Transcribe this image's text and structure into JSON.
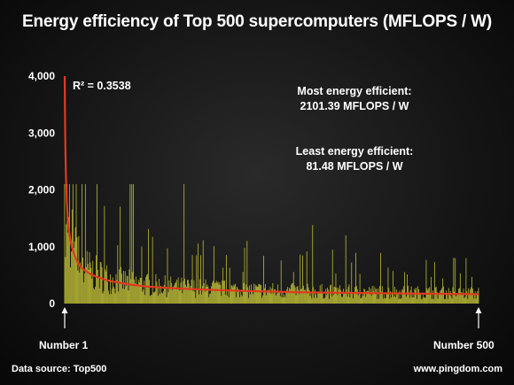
{
  "title": "Energy efficiency of Top 500 supercomputers (MFLOPS / W)",
  "footer": {
    "source": "Data source: Top500",
    "site": "www.pingdom.com"
  },
  "colors": {
    "bars": "#c9c93a",
    "trendline": "#e03a1e",
    "text": "#ffffff"
  },
  "chart_data": {
    "type": "bar",
    "title": "Energy efficiency of Top 500 supercomputers (MFLOPS / W)",
    "xlabel": "",
    "ylabel": "",
    "ylim": [
      0,
      4000
    ],
    "yticks": [
      0,
      1000,
      2000,
      3000,
      4000
    ],
    "ytick_labels": [
      "0",
      "1,000",
      "2,000",
      "3,000",
      "4,000"
    ],
    "x_range": [
      1,
      500
    ],
    "x_markers": [
      {
        "rank": 1,
        "label": "Number 1"
      },
      {
        "rank": 500,
        "label": "Number 500"
      }
    ],
    "grid": false,
    "legend": "none",
    "series": [
      {
        "type": "bar",
        "n": 500,
        "min": 81.48,
        "max": 2101.39,
        "sample_peaks": [
          {
            "rank": 2,
            "value": 820
          },
          {
            "rank": 4,
            "value": 2100
          },
          {
            "rank": 7,
            "value": 2100
          },
          {
            "rank": 11,
            "value": 2100
          },
          {
            "rank": 15,
            "value": 2100
          },
          {
            "rank": 22,
            "value": 2100
          },
          {
            "rank": 26,
            "value": 2100
          },
          {
            "rank": 40,
            "value": 2100
          },
          {
            "rank": 80,
            "value": 2100
          },
          {
            "rank": 82,
            "value": 2100
          },
          {
            "rank": 84,
            "value": 2100
          },
          {
            "rank": 145,
            "value": 2100
          },
          {
            "rank": 155,
            "value": 850
          },
          {
            "rank": 160,
            "value": 850
          },
          {
            "rank": 165,
            "value": 850
          },
          {
            "rank": 300,
            "value": 1380
          },
          {
            "rank": 340,
            "value": 1200
          }
        ]
      },
      {
        "type": "trend",
        "fit": "power",
        "r_squared_label": "R² = 0.3538",
        "points": [
          {
            "rank": 1,
            "value": 4000
          },
          {
            "rank": 2,
            "value": 2600
          },
          {
            "rank": 5,
            "value": 1450
          },
          {
            "rank": 10,
            "value": 980
          },
          {
            "rank": 20,
            "value": 650
          },
          {
            "rank": 50,
            "value": 420
          },
          {
            "rank": 100,
            "value": 300
          },
          {
            "rank": 200,
            "value": 230
          },
          {
            "rank": 300,
            "value": 195
          },
          {
            "rank": 400,
            "value": 180
          },
          {
            "rank": 500,
            "value": 165
          }
        ]
      }
    ],
    "annotations": [
      {
        "id": "r2",
        "text": "R² = 0.3538"
      },
      {
        "id": "most_1",
        "text": "Most energy efficient:"
      },
      {
        "id": "most_2",
        "text": "2101.39 MFLOPS / W"
      },
      {
        "id": "least_1",
        "text": "Least energy efficient:"
      },
      {
        "id": "least_2",
        "text": "81.48 MFLOPS / W"
      }
    ]
  }
}
